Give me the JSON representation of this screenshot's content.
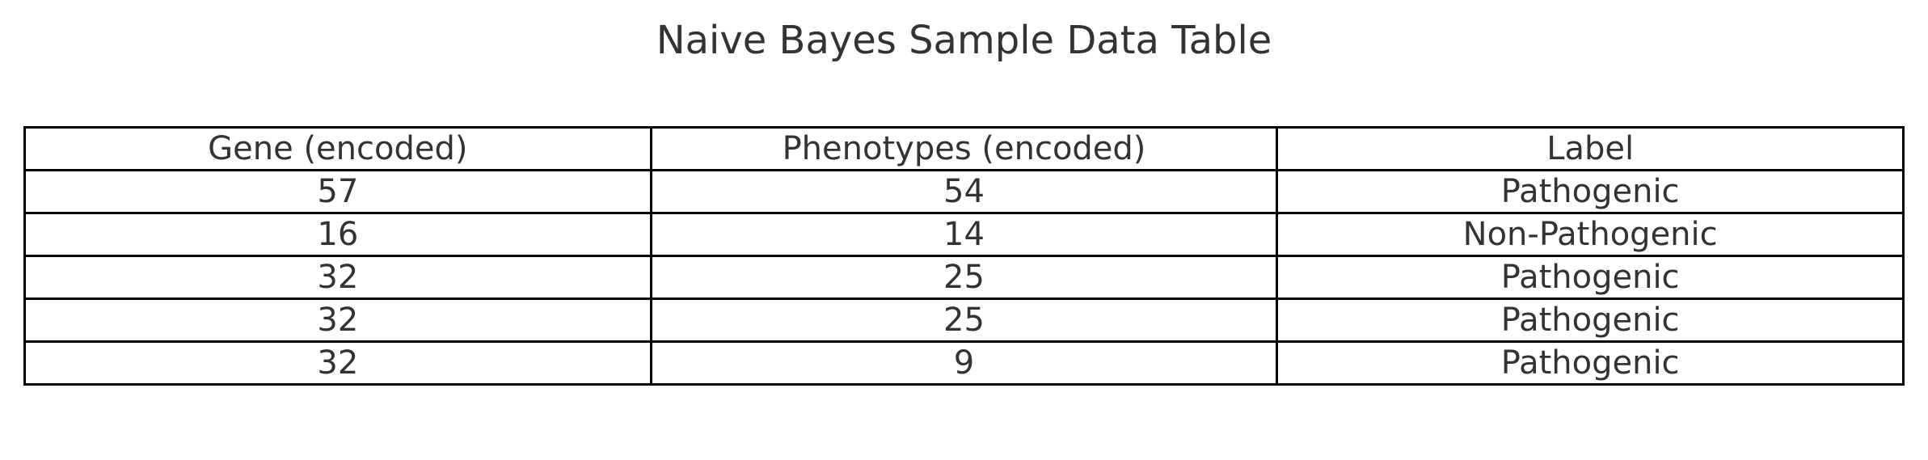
{
  "chart_data": {
    "type": "table",
    "title": "Naive Bayes Sample Data Table",
    "columns": [
      "Gene (encoded)",
      "Phenotypes (encoded)",
      "Label"
    ],
    "rows": [
      [
        "57",
        "54",
        "Pathogenic"
      ],
      [
        "16",
        "14",
        "Non-Pathogenic"
      ],
      [
        "32",
        "25",
        "Pathogenic"
      ],
      [
        "32",
        "25",
        "Pathogenic"
      ],
      [
        "32",
        "9",
        "Pathogenic"
      ]
    ],
    "colors": {
      "text": "#333333",
      "border": "#000000",
      "background": "#ffffff"
    }
  }
}
